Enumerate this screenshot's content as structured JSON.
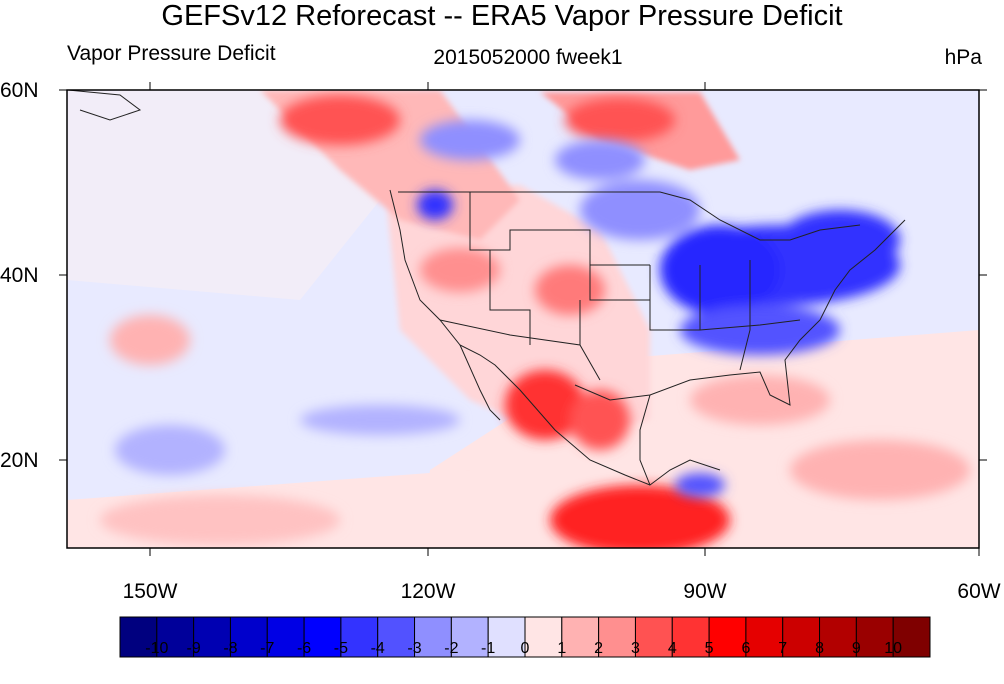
{
  "title": "GEFSv12 Reforecast -- ERA5 Vapor Pressure Deficit",
  "left_subtitle": "Vapor Pressure Deficit",
  "center_subtitle": "2015052000 fweek1",
  "right_subtitle": "hPa",
  "lat_labels": [
    "60N",
    "40N",
    "20N"
  ],
  "lon_labels": [
    "150W",
    "120W",
    "90W",
    "60W"
  ],
  "colorbar": {
    "labels": [
      "-10",
      "-9",
      "-8",
      "-7",
      "-6",
      "-5",
      "-4",
      "-3",
      "-2",
      "-1",
      "0",
      "1",
      "2",
      "3",
      "4",
      "5",
      "6",
      "7",
      "8",
      "9",
      "10"
    ],
    "colors": [
      "#00007f",
      "#00009a",
      "#0000b2",
      "#0000cc",
      "#0000e5",
      "#0000ff",
      "#3333ff",
      "#5252ff",
      "#8f8fff",
      "#b2b2ff",
      "#e0e0ff",
      "#ffe5e5",
      "#ffb2b2",
      "#ff8f8f",
      "#ff5252",
      "#ff3333",
      "#ff0000",
      "#e50000",
      "#cc0000",
      "#b20000",
      "#9a0000",
      "#7f0000"
    ]
  }
}
